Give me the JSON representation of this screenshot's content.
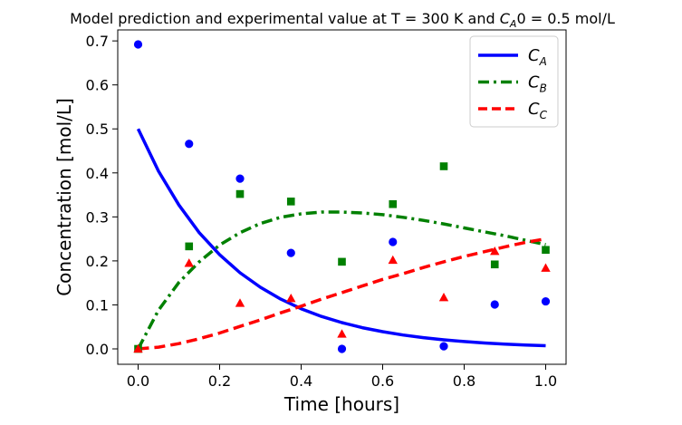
{
  "chart_data": {
    "type": "line",
    "title": "Model prediction and experimental value at T = 300 K and C_A0 = 0.5 mol/L",
    "title_parts": {
      "prefix": "Model prediction and experimental value at T = 300 K and ",
      "var": "C",
      "var_sub": "A",
      "suffix": "0 = 0.5 mol/L"
    },
    "xlabel": "Time [hours]",
    "ylabel": "Concentration [mol/L]",
    "xlim": [
      -0.05,
      1.05
    ],
    "ylim": [
      -0.035,
      0.725
    ],
    "xticks": [
      0.0,
      0.2,
      0.4,
      0.6,
      0.8,
      1.0
    ],
    "xtick_labels": [
      "0.0",
      "0.2",
      "0.4",
      "0.6",
      "0.8",
      "1.0"
    ],
    "yticks": [
      0.0,
      0.1,
      0.2,
      0.3,
      0.4,
      0.5,
      0.6,
      0.7
    ],
    "ytick_labels": [
      "0.0",
      "0.1",
      "0.2",
      "0.3",
      "0.4",
      "0.5",
      "0.6",
      "0.7"
    ],
    "grid": false,
    "legend_position": "top-right",
    "series": [
      {
        "name": "C_A",
        "label_var": "C",
        "label_sub": "A",
        "kind": "model",
        "color": "#0000ff",
        "dash": "solid",
        "x": [
          0.0,
          0.05,
          0.1,
          0.15,
          0.2,
          0.25,
          0.3,
          0.35,
          0.4,
          0.45,
          0.5,
          0.55,
          0.6,
          0.65,
          0.7,
          0.75,
          0.8,
          0.85,
          0.9,
          0.95,
          1.0
        ],
        "y": [
          0.5,
          0.404,
          0.327,
          0.264,
          0.214,
          0.173,
          0.14,
          0.113,
          0.0913,
          0.0738,
          0.0597,
          0.0483,
          0.0391,
          0.0316,
          0.0255,
          0.0207,
          0.0167,
          0.0135,
          0.0109,
          0.0089,
          0.0072
        ]
      },
      {
        "name": "C_B",
        "label_var": "C",
        "label_sub": "B",
        "kind": "model",
        "color": "#008000",
        "dash": "dashdot",
        "x": [
          0.0,
          0.05,
          0.1,
          0.15,
          0.2,
          0.25,
          0.3,
          0.35,
          0.4,
          0.45,
          0.5,
          0.55,
          0.6,
          0.65,
          0.7,
          0.75,
          0.8,
          0.85,
          0.9,
          0.95,
          1.0
        ],
        "y": [
          0.0,
          0.088,
          0.151,
          0.198,
          0.236,
          0.264,
          0.285,
          0.299,
          0.307,
          0.311,
          0.311,
          0.309,
          0.305,
          0.299,
          0.292,
          0.284,
          0.275,
          0.266,
          0.257,
          0.247,
          0.237
        ]
      },
      {
        "name": "C_C",
        "label_var": "C",
        "label_sub": "C",
        "kind": "model",
        "color": "#ff0000",
        "dash": "dashed",
        "x": [
          0.0,
          0.05,
          0.1,
          0.15,
          0.2,
          0.25,
          0.3,
          0.35,
          0.4,
          0.45,
          0.5,
          0.55,
          0.6,
          0.65,
          0.7,
          0.75,
          0.8,
          0.85,
          0.9,
          0.95,
          1.0
        ],
        "y": [
          0.0,
          0.004,
          0.012,
          0.023,
          0.036,
          0.051,
          0.066,
          0.082,
          0.097,
          0.113,
          0.128,
          0.143,
          0.158,
          0.171,
          0.185,
          0.198,
          0.21,
          0.221,
          0.232,
          0.242,
          0.25
        ]
      },
      {
        "kind": "data",
        "marker": "circle",
        "color": "#0000ff",
        "x": [
          0.0,
          0.125,
          0.25,
          0.375,
          0.5,
          0.625,
          0.75,
          0.875,
          1.0
        ],
        "y": [
          0.692,
          0.466,
          0.387,
          0.218,
          0.0,
          0.243,
          0.006,
          0.101,
          0.108
        ]
      },
      {
        "kind": "data",
        "marker": "square",
        "color": "#008000",
        "x": [
          0.0,
          0.125,
          0.25,
          0.375,
          0.5,
          0.625,
          0.75,
          0.875,
          1.0
        ],
        "y": [
          0.0,
          0.233,
          0.352,
          0.335,
          0.198,
          0.329,
          0.415,
          0.192,
          0.225
        ]
      },
      {
        "kind": "data",
        "marker": "triangle",
        "color": "#ff0000",
        "x": [
          0.0,
          0.125,
          0.25,
          0.375,
          0.5,
          0.625,
          0.75,
          0.875,
          1.0
        ],
        "y": [
          0.0,
          0.195,
          0.104,
          0.115,
          0.034,
          0.202,
          0.117,
          0.222,
          0.184
        ]
      }
    ]
  }
}
